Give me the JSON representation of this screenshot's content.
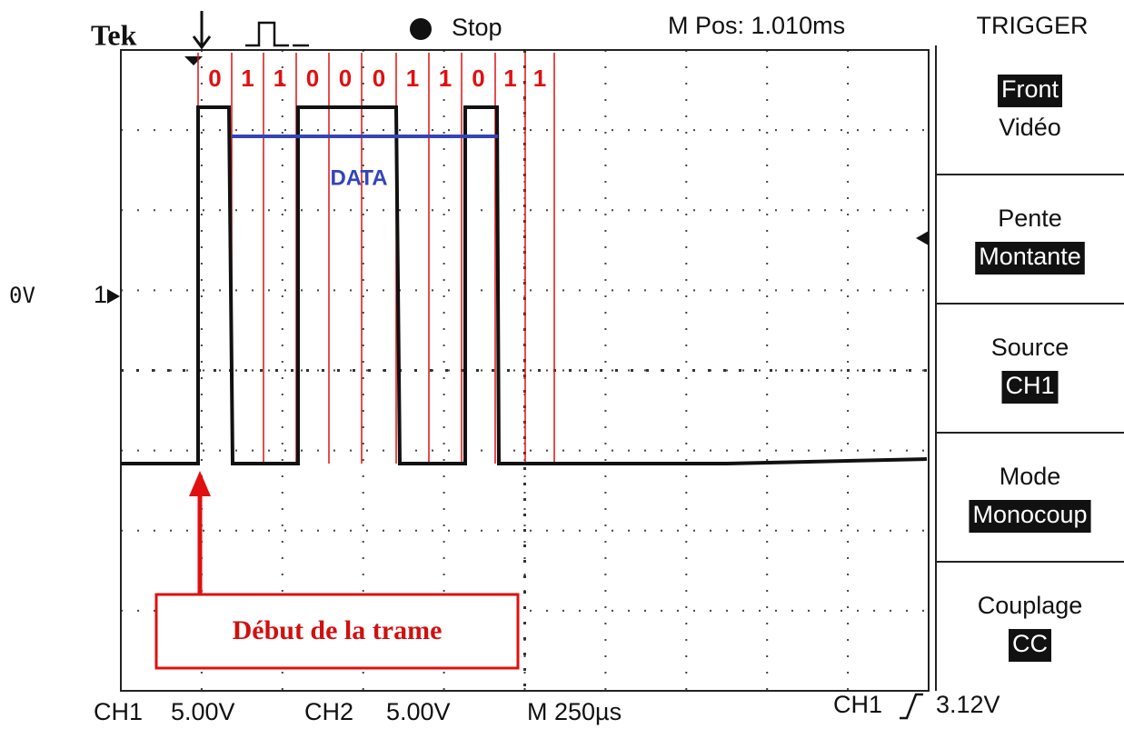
{
  "header": {
    "brand": "Tek",
    "state": "Stop",
    "position": "M Pos: 1.010ms",
    "menu_title": "TRIGGER"
  },
  "channel_marker": {
    "level": "0V",
    "channel": "1"
  },
  "bits": [
    "0",
    "1",
    "1",
    "0",
    "0",
    "0",
    "1",
    "1",
    "0",
    "1",
    "1"
  ],
  "data_label": "DATA",
  "annotation": "Début de la trame",
  "menu": [
    {
      "label": "Front",
      "value": "Vidéo",
      "highlight": "label"
    },
    {
      "label": "Pente",
      "value": "Montante",
      "highlight": "value"
    },
    {
      "label": "Source",
      "value": "CH1",
      "highlight": "value"
    },
    {
      "label": "Mode",
      "value": "Monocoup",
      "highlight": "value"
    },
    {
      "label": "Couplage",
      "value": "CC",
      "highlight": "value"
    }
  ],
  "footer": {
    "ch1": "CH1",
    "ch1_scale": "5.00V",
    "ch2": "CH2",
    "ch2_scale": "5.00V",
    "timebase": "M 250µs",
    "trigger_source": "CH1",
    "trigger_level": "3.12V"
  }
}
